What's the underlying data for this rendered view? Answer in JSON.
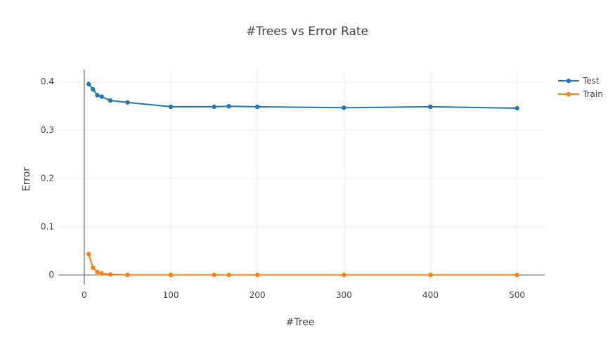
{
  "chart_data": {
    "type": "line",
    "title": "#Trees vs Error Rate",
    "xlabel": "#Tree",
    "ylabel": "Error",
    "xlim": [
      -30,
      532
    ],
    "ylim": [
      -0.02,
      0.425
    ],
    "xticks": [
      0,
      100,
      200,
      300,
      400,
      500
    ],
    "yticks": [
      0,
      0.1,
      0.2,
      0.3,
      0.4
    ],
    "ytick_labels": [
      "0",
      "0.1",
      "0.2",
      "0.3",
      "0.4"
    ],
    "grid": true,
    "legend_position": "top-right",
    "x": [
      5,
      10,
      15,
      20,
      30,
      50,
      100,
      150,
      167,
      200,
      300,
      400,
      500
    ],
    "series": [
      {
        "name": "Test",
        "color": "#1f77b4",
        "values": [
          0.395,
          0.384,
          0.372,
          0.369,
          0.361,
          0.357,
          0.348,
          0.348,
          0.349,
          0.348,
          0.346,
          0.348,
          0.345
        ]
      },
      {
        "name": "Train",
        "color": "#ff7f0e",
        "values": [
          0.043,
          0.015,
          0.006,
          0.003,
          0.001,
          0.0,
          0.0,
          0.0,
          0.0,
          0.0,
          0.0,
          0.0,
          0.0
        ]
      }
    ]
  }
}
